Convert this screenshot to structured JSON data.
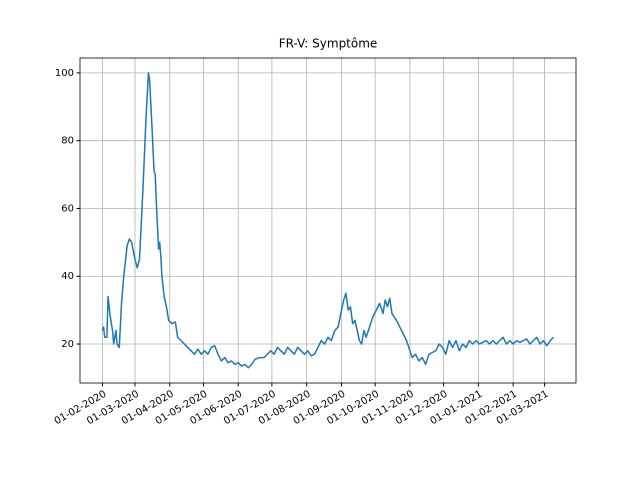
{
  "chart_data": {
    "type": "line",
    "title": "FR-V: Symptôme",
    "x": [
      "2020-02-01",
      "2020-02-02",
      "2020-02-03",
      "2020-02-05",
      "2020-02-06",
      "2020-02-08",
      "2020-02-10",
      "2020-02-11",
      "2020-02-13",
      "2020-02-14",
      "2020-02-16",
      "2020-02-18",
      "2020-02-20",
      "2020-02-23",
      "2020-02-25",
      "2020-02-27",
      "2020-03-01",
      "2020-03-03",
      "2020-03-05",
      "2020-03-08",
      "2020-03-11",
      "2020-03-13",
      "2020-03-14",
      "2020-03-16",
      "2020-03-18",
      "2020-03-19",
      "2020-03-20",
      "2020-03-21",
      "2020-03-22",
      "2020-03-23",
      "2020-03-24",
      "2020-03-25",
      "2020-03-27",
      "2020-03-29",
      "2020-03-31",
      "2020-04-03",
      "2020-04-06",
      "2020-04-08",
      "2020-04-11",
      "2020-04-14",
      "2020-04-17",
      "2020-04-20",
      "2020-04-23",
      "2020-04-26",
      "2020-04-29",
      "2020-05-02",
      "2020-05-05",
      "2020-05-08",
      "2020-05-11",
      "2020-05-14",
      "2020-05-17",
      "2020-05-20",
      "2020-05-23",
      "2020-05-26",
      "2020-05-29",
      "2020-06-01",
      "2020-06-04",
      "2020-06-07",
      "2020-06-10",
      "2020-06-13",
      "2020-06-16",
      "2020-06-20",
      "2020-06-24",
      "2020-06-27",
      "2020-06-30",
      "2020-07-03",
      "2020-07-06",
      "2020-07-09",
      "2020-07-12",
      "2020-07-15",
      "2020-07-18",
      "2020-07-21",
      "2020-07-24",
      "2020-07-27",
      "2020-07-30",
      "2020-08-02",
      "2020-08-05",
      "2020-08-08",
      "2020-08-11",
      "2020-08-14",
      "2020-08-17",
      "2020-08-20",
      "2020-08-23",
      "2020-08-26",
      "2020-08-29",
      "2020-09-01",
      "2020-09-03",
      "2020-09-05",
      "2020-09-07",
      "2020-09-09",
      "2020-09-11",
      "2020-09-13",
      "2020-09-15",
      "2020-09-17",
      "2020-09-19",
      "2020-09-21",
      "2020-09-23",
      "2020-09-26",
      "2020-09-29",
      "2020-10-02",
      "2020-10-05",
      "2020-10-08",
      "2020-10-10",
      "2020-10-12",
      "2020-10-14",
      "2020-10-16",
      "2020-10-18",
      "2020-10-20",
      "2020-10-23",
      "2020-10-26",
      "2020-10-29",
      "2020-11-01",
      "2020-11-03",
      "2020-11-06",
      "2020-11-09",
      "2020-11-12",
      "2020-11-15",
      "2020-11-18",
      "2020-11-21",
      "2020-11-24",
      "2020-11-27",
      "2020-11-30",
      "2020-12-03",
      "2020-12-06",
      "2020-12-09",
      "2020-12-12",
      "2020-12-15",
      "2020-12-18",
      "2020-12-21",
      "2020-12-24",
      "2020-12-27",
      "2020-12-30",
      "2021-01-02",
      "2021-01-05",
      "2021-01-08",
      "2021-01-11",
      "2021-01-14",
      "2021-01-17",
      "2021-01-20",
      "2021-01-23",
      "2021-01-26",
      "2021-01-29",
      "2021-02-01",
      "2021-02-04",
      "2021-02-07",
      "2021-02-10",
      "2021-02-13",
      "2021-02-16",
      "2021-02-19",
      "2021-02-22",
      "2021-02-25",
      "2021-02-28",
      "2021-03-03",
      "2021-03-06",
      "2021-03-09"
    ],
    "series": [
      {
        "color": "#1f77b4",
        "values": [
          24,
          25,
          22,
          22,
          34,
          28,
          24,
          20,
          24,
          20,
          19,
          32,
          40,
          49,
          51,
          50,
          45,
          42.5,
          45,
          65,
          88,
          100,
          98,
          85,
          71,
          70,
          62,
          55,
          48,
          50,
          46,
          40,
          34,
          31,
          27,
          26,
          26.5,
          22,
          21,
          20,
          19,
          18,
          17,
          18.5,
          17,
          18,
          17,
          19,
          19.5,
          17,
          15,
          16,
          14.5,
          15,
          14,
          14.5,
          13.5,
          14,
          13,
          14,
          15.5,
          16,
          16,
          17,
          18,
          17,
          19,
          18,
          17,
          19,
          18,
          17,
          19,
          18,
          17,
          18,
          16.5,
          17,
          19,
          21,
          20,
          22,
          21,
          24,
          25,
          30,
          33,
          35,
          30,
          31,
          26,
          27,
          24,
          21,
          20,
          24,
          22,
          25,
          28,
          30,
          32,
          29,
          33,
          31,
          33.5,
          29,
          28,
          27,
          25,
          23,
          21,
          18,
          16,
          17,
          15,
          16,
          14,
          17,
          17.5,
          18,
          20,
          19,
          17,
          21,
          19,
          21,
          18,
          20,
          19,
          21,
          20,
          21,
          20,
          20.5,
          21,
          20,
          21,
          20,
          21,
          22,
          20,
          21,
          20,
          21,
          20.5,
          21,
          21.5,
          20,
          21,
          22,
          20,
          21,
          19.5,
          21,
          22
        ]
      }
    ],
    "xlim": [
      "2020-01-12",
      "2021-03-29"
    ],
    "xticks": [
      {
        "value": "2020-02-01",
        "label": "01-02-2020"
      },
      {
        "value": "2020-03-01",
        "label": "01-03-2020"
      },
      {
        "value": "2020-04-01",
        "label": "01-04-2020"
      },
      {
        "value": "2020-05-01",
        "label": "01-05-2020"
      },
      {
        "value": "2020-06-01",
        "label": "01-06-2020"
      },
      {
        "value": "2020-07-01",
        "label": "01-07-2020"
      },
      {
        "value": "2020-08-01",
        "label": "01-08-2020"
      },
      {
        "value": "2020-09-01",
        "label": "01-09-2020"
      },
      {
        "value": "2020-10-01",
        "label": "01-10-2020"
      },
      {
        "value": "2020-11-01",
        "label": "01-11-2020"
      },
      {
        "value": "2020-12-01",
        "label": "01-12-2020"
      },
      {
        "value": "2021-01-01",
        "label": "01-01-2021"
      },
      {
        "value": "2021-02-01",
        "label": "01-02-2021"
      },
      {
        "value": "2021-03-01",
        "label": "01-03-2021"
      }
    ],
    "ylim": [
      8.5,
      104.4
    ],
    "yticks": [
      20,
      40,
      60,
      80,
      100
    ],
    "grid": true
  }
}
